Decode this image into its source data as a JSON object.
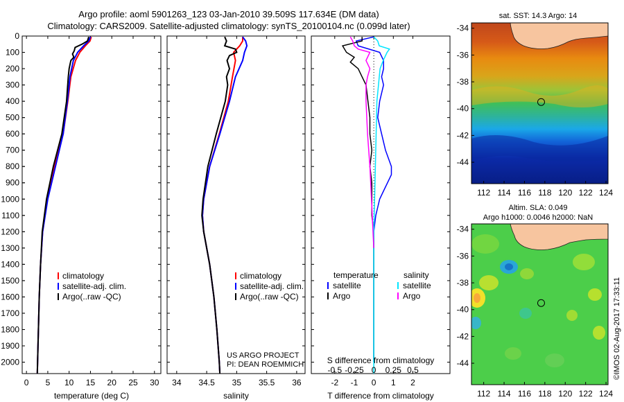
{
  "titles": {
    "line1": "Argo profile: aoml 5901263_123 03-Jan-2010 39.509S 117.634E (DM data)",
    "line2": "Climatology: CARS2009. Satellite-adjusted climatology: synTS_20100104.nc (0.099d later)"
  },
  "colors": {
    "climatology": "#ff0000",
    "satellite": "#0000ff",
    "argo": "#000000",
    "sat_salinity": "#00e5ff",
    "argo_salinity": "#ff00ff"
  },
  "depth_axis": {
    "ticks": [
      0,
      100,
      200,
      300,
      400,
      500,
      600,
      700,
      800,
      900,
      1000,
      1100,
      1200,
      1300,
      1400,
      1500,
      1600,
      1700,
      1800,
      1900,
      2000
    ],
    "range": [
      0,
      2070
    ]
  },
  "chart_data": [
    {
      "type": "line",
      "id": "temperature",
      "xlabel": "temperature (deg C)",
      "xlim": [
        -1,
        31.5
      ],
      "xticks": [
        0,
        5,
        10,
        15,
        20,
        25,
        30
      ],
      "legend": {
        "position": "bottom-right",
        "entries": [
          "climatology",
          "satellite-adj. clim.",
          "Argo(..raw -QC)"
        ]
      },
      "series": [
        {
          "name": "climatology",
          "color": "#ff0000",
          "depth": [
            5,
            30,
            60,
            100,
            150,
            250,
            400,
            600,
            800,
            1000,
            1200,
            1400,
            1600,
            1800,
            2000,
            2070
          ],
          "values": [
            15.2,
            14.9,
            13.8,
            12.5,
            11.5,
            10.4,
            9.7,
            8.6,
            6.6,
            4.9,
            3.8,
            3.3,
            3.0,
            2.8,
            2.6,
            2.55
          ]
        },
        {
          "name": "satellite-adj. clim.",
          "color": "#0000ff",
          "depth": [
            5,
            30,
            60,
            100,
            150,
            250,
            400,
            600,
            800,
            1000,
            1200,
            1400,
            1600,
            1800,
            2000,
            2070
          ],
          "values": [
            15.0,
            14.6,
            13.4,
            12.0,
            11.0,
            10.2,
            9.6,
            8.6,
            6.8,
            5.0,
            3.8,
            3.3,
            3.0,
            2.8,
            2.6,
            2.55
          ]
        },
        {
          "name": "Argo(..raw -QC)",
          "color": "#000000",
          "depth": [
            5,
            30,
            50,
            70,
            90,
            110,
            130,
            150,
            200,
            250,
            400,
            600,
            800,
            1000,
            1200,
            1400,
            1600,
            1800,
            2000,
            2070
          ],
          "values": [
            14.6,
            14.3,
            13.0,
            11.4,
            11.2,
            10.8,
            11.1,
            10.4,
            10.0,
            9.8,
            9.4,
            8.3,
            6.3,
            4.7,
            3.7,
            3.3,
            3.0,
            2.8,
            2.6,
            2.55
          ]
        }
      ]
    },
    {
      "type": "line",
      "id": "salinity",
      "xlabel": "salinity",
      "xlim": [
        33.84,
        36.14
      ],
      "xticks": [
        34,
        34.5,
        35,
        35.5,
        36
      ],
      "legend": {
        "position": "bottom-right",
        "entries": [
          "climatology",
          "satellite-adj. clim.",
          "Argo(..raw -QC)"
        ]
      },
      "series": [
        {
          "name": "climatology",
          "color": "#ff0000",
          "depth": [
            5,
            30,
            60,
            100,
            150,
            250,
            400,
            600,
            800,
            1000,
            1100,
            1200,
            1400,
            1600,
            1800,
            2000,
            2070
          ],
          "values": [
            35.1,
            35.1,
            35.05,
            34.95,
            34.98,
            34.93,
            34.86,
            34.71,
            34.55,
            34.45,
            34.43,
            34.45,
            34.55,
            34.62,
            34.67,
            34.71,
            34.72
          ]
        },
        {
          "name": "satellite-adj. clim.",
          "color": "#0000ff",
          "depth": [
            5,
            30,
            60,
            100,
            150,
            250,
            400,
            600,
            800,
            1000,
            1100,
            1200,
            1400,
            1600,
            1800,
            2000,
            2070
          ],
          "values": [
            35.1,
            35.15,
            35.17,
            35.13,
            35.1,
            34.98,
            34.88,
            34.72,
            34.55,
            34.45,
            34.43,
            34.45,
            34.55,
            34.62,
            34.67,
            34.71,
            34.72
          ]
        },
        {
          "name": "Argo(..raw -QC)",
          "color": "#000000",
          "depth": [
            5,
            30,
            60,
            80,
            100,
            120,
            150,
            200,
            250,
            300,
            400,
            600,
            800,
            1000,
            1100,
            1200,
            1400,
            1600,
            1800,
            2000,
            2070
          ],
          "values": [
            34.8,
            34.83,
            34.8,
            34.98,
            35.0,
            34.88,
            34.84,
            34.88,
            34.83,
            34.85,
            34.81,
            34.66,
            34.52,
            34.44,
            34.42,
            34.45,
            34.55,
            34.62,
            34.67,
            34.71,
            34.72
          ]
        }
      ]
    },
    {
      "type": "line",
      "id": "differences",
      "xlabel": "T difference from climatology",
      "top_label": "S difference from climatology",
      "xlim": [
        -3.2,
        3.9
      ],
      "xticks": [
        -2,
        -1,
        0,
        1,
        2
      ],
      "top_xtick_labels": [
        "-0.5",
        "-0.25",
        "0",
        "0.25",
        "0.5"
      ],
      "legend": {
        "position": "bottom",
        "headers": [
          "temperature",
          "salinity"
        ],
        "entries": [
          "satellite",
          "Argo",
          "satellite",
          "Argo"
        ]
      },
      "series": [
        {
          "name": "satellite",
          "group": "temperature",
          "color": "#0000ff",
          "depth": [
            5,
            30,
            60,
            100,
            150,
            200,
            250,
            300,
            400,
            500,
            600,
            700,
            800,
            850,
            900,
            950,
            1000,
            1050,
            1100,
            1200,
            1300,
            1500,
            1700,
            1900,
            2000
          ],
          "values": [
            0.0,
            -0.9,
            -0.8,
            0.3,
            0.5,
            0.5,
            0.4,
            0.5,
            0.3,
            0.2,
            0.4,
            0.6,
            0.9,
            0.9,
            0.7,
            0.5,
            0.3,
            0.2,
            0.1,
            0.0,
            0.0,
            0.0,
            0.0,
            0.0,
            0.0
          ]
        },
        {
          "name": "Argo",
          "group": "temperature",
          "color": "#000000",
          "depth": [
            5,
            30,
            60,
            100,
            130,
            160,
            200,
            250,
            300,
            400,
            500,
            600,
            700,
            800,
            900,
            1000,
            1100,
            1200,
            1400,
            1600,
            1800,
            2000
          ],
          "values": [
            -0.6,
            -0.6,
            -1.6,
            -1.4,
            -1.0,
            -1.2,
            -0.8,
            -0.6,
            -0.4,
            -0.3,
            -0.2,
            -0.2,
            -0.1,
            -0.2,
            -0.1,
            -0.1,
            -0.1,
            0.0,
            0.0,
            0.0,
            0.0,
            0.0
          ]
        },
        {
          "name": "satellite",
          "group": "salinity",
          "color": "#00e5ff",
          "depth": [
            5,
            30,
            60,
            80,
            100,
            150,
            200,
            250,
            300,
            400,
            600,
            800,
            1000,
            1200,
            1400,
            1600,
            1800,
            2000,
            2070
          ],
          "values": [
            0.0,
            0.05,
            0.07,
            0.2,
            0.17,
            0.12,
            0.08,
            0.07,
            0.06,
            0.04,
            0.03,
            0.02,
            0.01,
            0.0,
            0.0,
            0.0,
            0.0,
            0.0,
            0.0
          ]
        },
        {
          "name": "Argo",
          "group": "salinity",
          "color": "#ff00ff",
          "depth": [
            5,
            30,
            60,
            80,
            100,
            150,
            200,
            250,
            300,
            400,
            500,
            600,
            800,
            1000,
            1200,
            1300
          ],
          "values": [
            -0.3,
            -0.27,
            -0.25,
            -0.2,
            -0.05,
            -0.1,
            -0.05,
            -0.08,
            -0.1,
            -0.1,
            -0.09,
            -0.08,
            -0.05,
            -0.03,
            -0.01,
            0.0
          ]
        }
      ]
    },
    {
      "type": "heatmap",
      "id": "sst-map",
      "title": "sat. SST: 14.3 Argo: 14",
      "xticks": [
        112,
        114,
        116,
        118,
        120,
        122,
        124
      ],
      "yticks": [
        -34,
        -36,
        -38,
        -40,
        -42,
        -44
      ],
      "xlim": [
        110.8,
        124.2
      ],
      "ylim": [
        -45.6,
        -33.6
      ],
      "marker": {
        "lon": 117.634,
        "lat": -39.509
      }
    },
    {
      "type": "heatmap",
      "id": "sla-map",
      "title": "Altim. SLA: 0.049",
      "title2": "Argo h1000: 0.0046 h2000: NaN",
      "xticks": [
        112,
        114,
        116,
        118,
        120,
        122,
        124
      ],
      "yticks": [
        -34,
        -36,
        -38,
        -40,
        -42,
        -44
      ],
      "xlim": [
        110.8,
        124.2
      ],
      "ylim": [
        -45.6,
        -33.6
      ],
      "marker": {
        "lon": 117.634,
        "lat": -39.509
      }
    }
  ],
  "annotations": {
    "project": "US ARGO PROJECT",
    "pi": "PI: DEAN ROEMMICH",
    "credit": "©IMOS 02-Aug-2017 17:33:11"
  }
}
